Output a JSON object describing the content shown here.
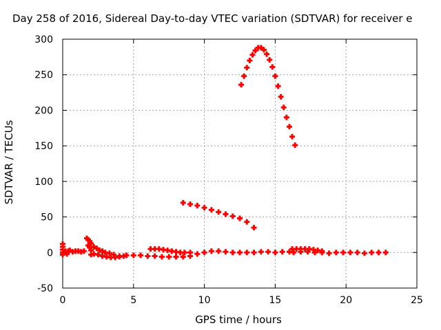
{
  "chart_data": {
    "type": "scatter",
    "title": "Day 258 of 2016, Sidereal Day-to-day VTEC variation (SDTVAR) for receiver e",
    "xlabel": "GPS time / hours",
    "ylabel": "SDTVAR / TECUs",
    "xlim": [
      0,
      25
    ],
    "ylim": [
      -50,
      300
    ],
    "xticks": [
      "0",
      "5",
      "10",
      "15",
      "20",
      "25"
    ],
    "yticks": [
      "-50",
      "0",
      "50",
      "100",
      "150",
      "200",
      "250",
      "300"
    ],
    "grid": true,
    "color": "#ff0000",
    "series": [
      {
        "points": [
          [
            0.0,
            8
          ],
          [
            0.0,
            12
          ],
          [
            0.0,
            4
          ],
          [
            0.0,
            0
          ],
          [
            0.0,
            -3
          ],
          [
            0.2,
            2
          ],
          [
            0.3,
            -2
          ],
          [
            0.4,
            2
          ],
          [
            0.5,
            3
          ],
          [
            0.7,
            1
          ],
          [
            0.9,
            2
          ],
          [
            1.1,
            2
          ],
          [
            1.3,
            1
          ],
          [
            1.5,
            2
          ],
          [
            1.7,
            20
          ],
          [
            1.8,
            18
          ],
          [
            1.9,
            16
          ],
          [
            2.0,
            13
          ],
          [
            1.8,
            10
          ],
          [
            1.9,
            7
          ],
          [
            2.0,
            3
          ],
          [
            2.0,
            -3
          ],
          [
            2.2,
            8
          ],
          [
            2.4,
            6
          ],
          [
            2.6,
            3
          ],
          [
            2.8,
            2
          ],
          [
            3.0,
            0
          ],
          [
            3.3,
            -1
          ],
          [
            3.6,
            -3
          ],
          [
            4.0,
            -5
          ],
          [
            4.3,
            -5
          ],
          [
            2.2,
            -2
          ],
          [
            2.5,
            -3
          ],
          [
            2.8,
            -5
          ],
          [
            3.1,
            -6
          ],
          [
            3.4,
            -7
          ],
          [
            3.7,
            -7
          ],
          [
            4.0,
            -6
          ],
          [
            4.5,
            -4
          ],
          [
            5.0,
            -4
          ],
          [
            5.5,
            -4
          ],
          [
            6.0,
            -5
          ],
          [
            6.5,
            -5
          ],
          [
            7.0,
            -6
          ],
          [
            7.5,
            -6
          ],
          [
            8.0,
            -6
          ],
          [
            8.5,
            -6
          ],
          [
            9.0,
            -5
          ],
          [
            6.2,
            5
          ],
          [
            6.5,
            5
          ],
          [
            6.8,
            5
          ],
          [
            7.1,
            4
          ],
          [
            7.4,
            3
          ],
          [
            7.7,
            2
          ],
          [
            8.0,
            1
          ],
          [
            8.3,
            0
          ],
          [
            8.6,
            0
          ],
          [
            9.0,
            0
          ],
          [
            9.5,
            -2
          ],
          [
            10.0,
            0
          ],
          [
            10.5,
            2
          ],
          [
            11.0,
            2
          ],
          [
            11.5,
            1
          ],
          [
            12.0,
            0
          ],
          [
            12.5,
            0
          ],
          [
            13.0,
            0
          ],
          [
            13.5,
            0
          ],
          [
            14.0,
            1
          ],
          [
            14.5,
            1
          ],
          [
            15.0,
            0
          ],
          [
            15.5,
            1
          ],
          [
            16.0,
            1
          ],
          [
            16.2,
            5
          ],
          [
            16.5,
            5
          ],
          [
            16.8,
            5
          ],
          [
            17.1,
            5
          ],
          [
            17.4,
            5
          ],
          [
            17.7,
            4
          ],
          [
            18.0,
            3
          ],
          [
            18.3,
            2
          ],
          [
            16.3,
            0
          ],
          [
            16.8,
            1
          ],
          [
            17.3,
            1
          ],
          [
            17.8,
            0
          ],
          [
            18.3,
            0
          ],
          [
            18.8,
            -1
          ],
          [
            19.3,
            0
          ],
          [
            19.8,
            0
          ],
          [
            20.3,
            0
          ],
          [
            20.8,
            0
          ],
          [
            21.3,
            -1
          ],
          [
            21.8,
            0
          ],
          [
            22.3,
            0
          ],
          [
            22.8,
            0
          ],
          [
            8.5,
            70
          ],
          [
            9.0,
            68
          ],
          [
            9.5,
            66
          ],
          [
            10.0,
            63
          ],
          [
            10.5,
            60
          ],
          [
            11.0,
            57
          ],
          [
            11.5,
            54
          ],
          [
            12.0,
            51
          ],
          [
            12.5,
            48
          ],
          [
            13.0,
            43
          ],
          [
            13.5,
            35
          ],
          [
            12.6,
            236
          ],
          [
            12.8,
            248
          ],
          [
            13.0,
            260
          ],
          [
            13.2,
            270
          ],
          [
            13.4,
            278
          ],
          [
            13.6,
            284
          ],
          [
            13.8,
            288
          ],
          [
            14.0,
            288
          ],
          [
            14.2,
            285
          ],
          [
            14.4,
            279
          ],
          [
            14.6,
            271
          ],
          [
            14.8,
            261
          ],
          [
            15.0,
            248
          ],
          [
            15.2,
            234
          ],
          [
            15.4,
            219
          ],
          [
            15.6,
            204
          ],
          [
            15.8,
            190
          ],
          [
            16.0,
            177
          ],
          [
            16.2,
            163
          ],
          [
            16.4,
            151
          ]
        ]
      }
    ]
  }
}
